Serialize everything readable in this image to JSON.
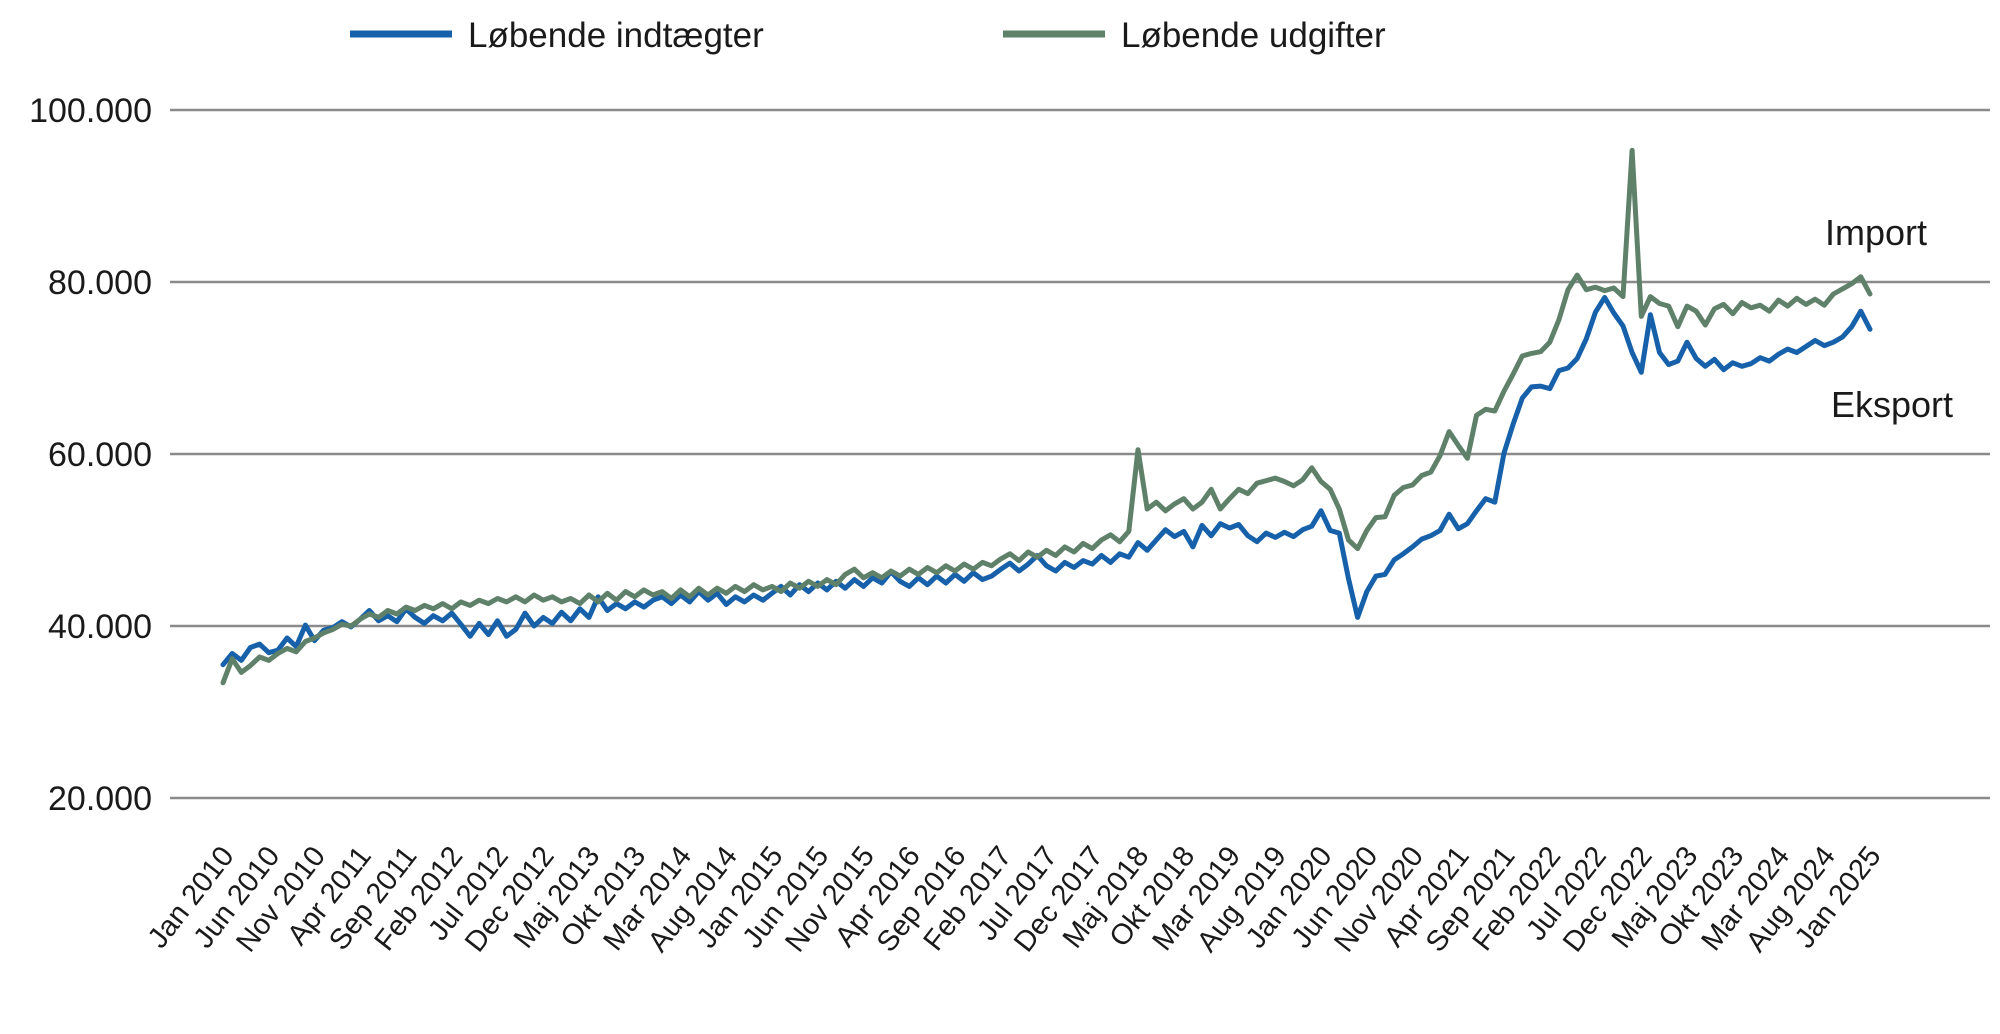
{
  "page": {
    "background": "#ffffff",
    "text_color": "#1a1a1a",
    "gridline_color": "#8a8a8a"
  },
  "legend": {
    "items": [
      {
        "label": "Løbende indtægter",
        "color": "#1761ab"
      },
      {
        "label": "Løbende udgifter",
        "color": "#5f8169"
      }
    ]
  },
  "annotations": [
    {
      "text": "Import"
    },
    {
      "text": "Eksport"
    }
  ],
  "chart_data": {
    "type": "line",
    "title": "",
    "xlabel": "",
    "ylabel": "",
    "x_unit": "month",
    "x_start": "Jan 2010",
    "x_end": "Jan 2025",
    "points_per_series": 181,
    "x_tick_every_months": 5,
    "x_tick_labels": [
      "Jan 2010",
      "Jun 2010",
      "Nov 2010",
      "Apr 2011",
      "Sep 2011",
      "Feb 2012",
      "Jul 2012",
      "Dec 2012",
      "Maj 2013",
      "Okt 2013",
      "Mar 2014",
      "Aug 2014",
      "Jan 2015",
      "Jun 2015",
      "Nov 2015",
      "Apr 2016",
      "Sep 2016",
      "Feb 2017",
      "Jul 2017",
      "Dec 2017",
      "Maj 2018",
      "Okt 2018",
      "Mar 2019",
      "Aug 2019",
      "Jan 2020",
      "Jun 2020",
      "Nov 2020",
      "Apr 2021",
      "Sep 2021",
      "Feb 2022",
      "Jul 2022",
      "Dec 2022",
      "Maj 2023",
      "Okt 2023",
      "Mar 2024",
      "Aug 2024",
      "Jan 2025"
    ],
    "y_tick_labels": [
      "20.000",
      "40.000",
      "60.000",
      "80.000",
      "100.000"
    ],
    "y_tick_values": [
      20000,
      40000,
      60000,
      80000,
      100000
    ],
    "ylim": [
      20000,
      100000
    ],
    "grid": "horizontal",
    "legend_position": "top",
    "series": [
      {
        "name": "Løbende indtægter",
        "annotation": "Eksport",
        "color": "#1761ab",
        "values": [
          35500,
          36800,
          36000,
          37500,
          37900,
          36900,
          37200,
          38600,
          37600,
          40100,
          38300,
          39500,
          39800,
          40500,
          39900,
          40800,
          41800,
          40600,
          41200,
          40500,
          42000,
          41000,
          40300,
          41200,
          40600,
          41500,
          40200,
          38800,
          40300,
          39000,
          40600,
          38800,
          39600,
          41500,
          40000,
          41000,
          40300,
          41600,
          40600,
          42000,
          41000,
          43400,
          41800,
          42600,
          42000,
          42800,
          42200,
          43000,
          43400,
          42600,
          43600,
          42800,
          44000,
          43000,
          43800,
          42500,
          43400,
          42800,
          43600,
          43000,
          43800,
          44600,
          43600,
          44800,
          44000,
          45000,
          44200,
          45200,
          44400,
          45400,
          44600,
          45600,
          45000,
          46300,
          45200,
          44600,
          45600,
          44800,
          45800,
          45000,
          46000,
          45200,
          46200,
          45400,
          45800,
          46600,
          47300,
          46400,
          47200,
          48200,
          47000,
          46400,
          47400,
          46800,
          47600,
          47200,
          48200,
          47400,
          48400,
          48000,
          49700,
          48800,
          50000,
          51200,
          50400,
          51000,
          49200,
          51700,
          50500,
          51900,
          51400,
          51800,
          50500,
          49800,
          50800,
          50300,
          50900,
          50400,
          51200,
          51600,
          53400,
          51100,
          50800,
          45500,
          41000,
          44000,
          45800,
          46000,
          47700,
          48400,
          49200,
          50100,
          50500,
          51100,
          53000,
          51300,
          51900,
          53400,
          54800,
          54400,
          60100,
          63500,
          66500,
          67800,
          67900,
          67600,
          69700,
          70000,
          71100,
          73400,
          76500,
          78200,
          76400,
          74900,
          71800,
          69500,
          76200,
          71800,
          70400,
          70800,
          73000,
          71100,
          70200,
          71000,
          69800,
          70600,
          70200,
          70500,
          71200,
          70800,
          71600,
          72200,
          71800,
          72500,
          73200,
          72600,
          73000,
          73600,
          74800,
          76600,
          74500
        ]
      },
      {
        "name": "Løbende udgifter",
        "annotation": "Import",
        "color": "#5f8169",
        "values": [
          33400,
          36200,
          34600,
          35400,
          36400,
          36000,
          36800,
          37400,
          37000,
          38200,
          38600,
          39200,
          39600,
          40200,
          40000,
          40800,
          41400,
          41000,
          41800,
          41400,
          42200,
          41800,
          42400,
          42000,
          42600,
          42000,
          42800,
          42400,
          43000,
          42600,
          43200,
          42800,
          43400,
          42800,
          43600,
          43000,
          43400,
          42800,
          43200,
          42600,
          43600,
          42800,
          43800,
          43000,
          44000,
          43400,
          44200,
          43600,
          44000,
          43200,
          44200,
          43400,
          44400,
          43600,
          44400,
          43800,
          44600,
          44000,
          44800,
          44200,
          44600,
          44000,
          45000,
          44400,
          45200,
          44600,
          45400,
          44800,
          46000,
          46600,
          45600,
          46200,
          45600,
          46400,
          45800,
          46600,
          46000,
          46800,
          46200,
          47000,
          46400,
          47200,
          46600,
          47400,
          47000,
          47800,
          48400,
          47600,
          48600,
          48000,
          48800,
          48200,
          49200,
          48600,
          49600,
          49000,
          50000,
          50600,
          49800,
          51000,
          60500,
          53600,
          54400,
          53400,
          54200,
          54800,
          53600,
          54400,
          55900,
          53600,
          54800,
          55900,
          55400,
          56600,
          56900,
          57200,
          56800,
          56300,
          57000,
          58400,
          56800,
          55900,
          53600,
          50000,
          49000,
          51100,
          52600,
          52700,
          55200,
          56100,
          56400,
          57500,
          57900,
          59800,
          62600,
          61000,
          59500,
          64500,
          65200,
          65000,
          67300,
          69300,
          71400,
          71700,
          71900,
          73000,
          75600,
          79100,
          80800,
          79100,
          79400,
          79000,
          79300,
          78300,
          95300,
          76000,
          78300,
          77500,
          77200,
          74800,
          77200,
          76600,
          75000,
          76900,
          77400,
          76300,
          77600,
          77000,
          77300,
          76600,
          77900,
          77200,
          78100,
          77400,
          78000,
          77300,
          78600,
          79200,
          79800,
          80600,
          78600
        ]
      }
    ]
  }
}
